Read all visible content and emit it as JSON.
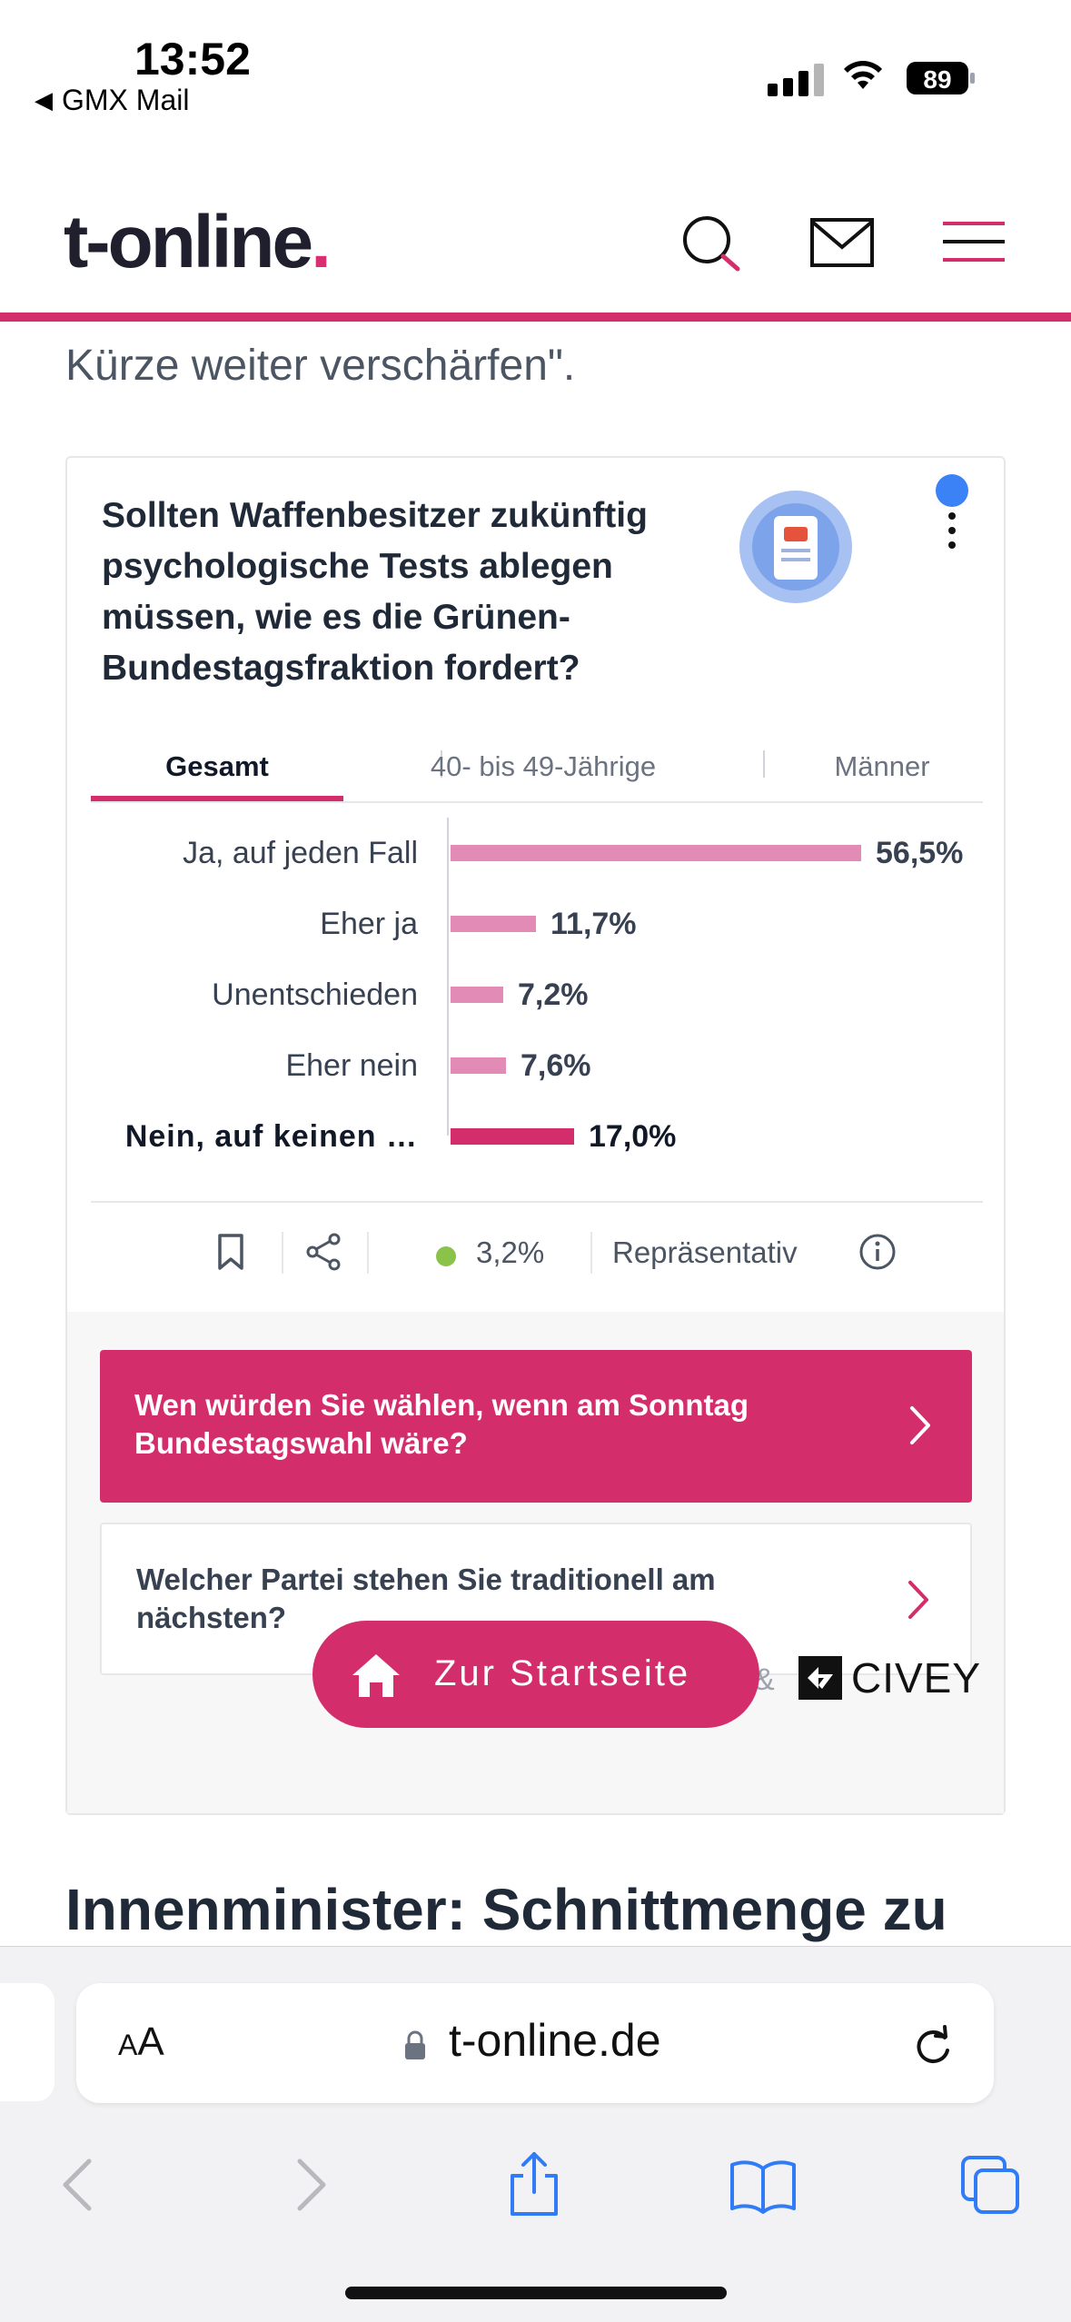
{
  "status_bar": {
    "time": "13:52",
    "back_app": "GMX Mail",
    "battery": "89"
  },
  "header": {
    "logo_text": "t-online",
    "logo_dot": "."
  },
  "article": {
    "lead_text": "Kürze weiter verschärfen\".",
    "next_heading": "Innenminister: Schnittmenge zu"
  },
  "poll": {
    "question": "Sollten Waffenbesitzer zukünftig psychologische Tests ablegen müssen, wie es die Grünen-Bundestagsfraktion fordert?",
    "tabs": [
      {
        "label": "Gesamt",
        "active": true
      },
      {
        "label": "40- bis 49-Jährige",
        "active": false
      },
      {
        "label": "Männer",
        "active": false
      }
    ],
    "results": [
      {
        "label": "Ja, auf jeden Fall",
        "value": 56.5,
        "display": "56,5%",
        "highlight": false
      },
      {
        "label": "Eher ja",
        "value": 11.7,
        "display": "11,7%",
        "highlight": false
      },
      {
        "label": "Unentschieden",
        "value": 7.2,
        "display": "7,2%",
        "highlight": false
      },
      {
        "label": "Eher nein",
        "value": 7.6,
        "display": "7,6%",
        "highlight": false
      },
      {
        "label": "Nein, auf keinen …",
        "value": 17.0,
        "display": "17,0%",
        "highlight": true
      }
    ],
    "footer": {
      "margin_of_error": "3,2%",
      "representative": "Repräsentativ"
    },
    "cta_primary": "Wen würden Sie wählen, wenn am Sonntag Bundestagswahl wäre?",
    "cta_secondary": "Welcher Partei stehen Sie traditionell am nächsten?",
    "start_button": "Zur Startseite",
    "partner_amp": "&",
    "partner_name": "CIVEY"
  },
  "safari": {
    "aa_label": "AA",
    "url": "t-online.de"
  },
  "colors": {
    "brand": "#d42d6b",
    "bar_light": "#e18bb6",
    "blue_dot": "#3b82f6",
    "green_dot": "#8bc34a"
  }
}
